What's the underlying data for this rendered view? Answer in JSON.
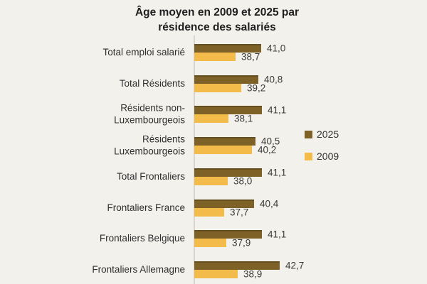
{
  "background_color": "#f3f1ec",
  "axis_line_color": "#d9d6cf",
  "chart_data": {
    "type": "bar",
    "orientation": "horizontal",
    "title": "Âge moyen en 2009 et 2025 par résidence des salariés",
    "categories": [
      "Total emploi salarié",
      "Total Résidents",
      "Résidents non-Luxembourgeois",
      "Résidents Luxembourgeois",
      "Total Frontaliers",
      "Frontaliers France",
      "Frontaliers Belgique",
      "Frontaliers Allemagne"
    ],
    "series": [
      {
        "name": "2025",
        "color": "#7d6126",
        "values": [
          41.0,
          40.8,
          41.1,
          40.5,
          41.1,
          40.4,
          41.1,
          42.7
        ],
        "labels": [
          "41,0",
          "40,8",
          "41,1",
          "40,5",
          "41,1",
          "40,4",
          "41,1",
          "42,7"
        ]
      },
      {
        "name": "2009",
        "color": "#f2bb4a",
        "values": [
          38.7,
          39.2,
          38.1,
          40.2,
          38.0,
          37.7,
          37.9,
          38.9
        ],
        "labels": [
          "38,7",
          "39,2",
          "38,1",
          "40,2",
          "38,0",
          "37,7",
          "37,9",
          "38,9"
        ]
      }
    ],
    "xlim": [
      35,
      43
    ],
    "grid": false,
    "legend_position": "right",
    "value_labels_shown": true
  },
  "legend": {
    "items": [
      {
        "label": "2025",
        "color": "#7d6126"
      },
      {
        "label": "2009",
        "color": "#f2bb4a"
      }
    ]
  }
}
